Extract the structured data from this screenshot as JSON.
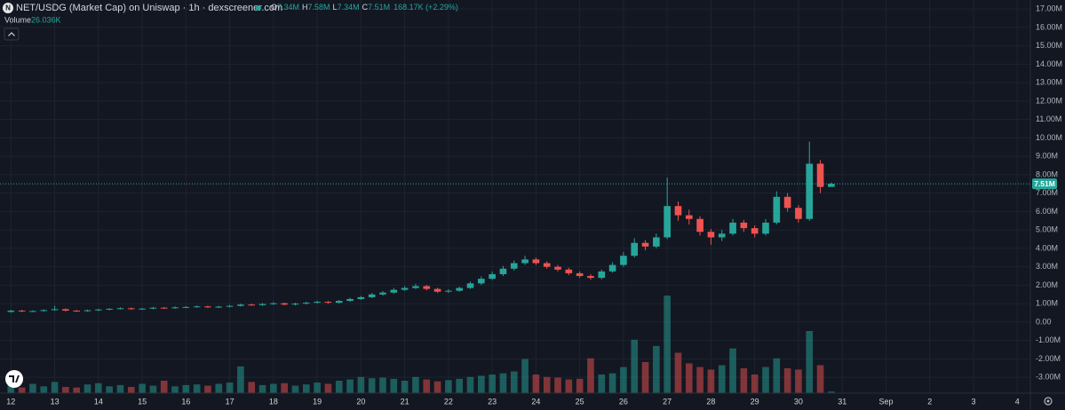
{
  "chart_data": {
    "type": "candlestick",
    "title": "NET/USDG (Market Cap) on Uniswap · 1h · dexscreener.com",
    "ohlc_legend": [
      {
        "key": "O",
        "value": "7.34M"
      },
      {
        "key": "H",
        "value": "7.58M"
      },
      {
        "key": "L",
        "value": "7.34M"
      },
      {
        "key": "C",
        "value": "7.51M"
      }
    ],
    "change": "168.17K (+2.29%)",
    "volume_label": "Volume",
    "volume_value": "26.036K",
    "up_color": "#26a69a",
    "down_color": "#ef5350",
    "grid": true,
    "xlim": [
      -0.25,
      23.3
    ],
    "xticks": [
      {
        "value": 0,
        "label": "12"
      },
      {
        "value": 1,
        "label": "13"
      },
      {
        "value": 2,
        "label": "14"
      },
      {
        "value": 3,
        "label": "15"
      },
      {
        "value": 4,
        "label": "16"
      },
      {
        "value": 5,
        "label": "17"
      },
      {
        "value": 6,
        "label": "18"
      },
      {
        "value": 7,
        "label": "19"
      },
      {
        "value": 8,
        "label": "20"
      },
      {
        "value": 9,
        "label": "21"
      },
      {
        "value": 10,
        "label": "22"
      },
      {
        "value": 11,
        "label": "23"
      },
      {
        "value": 12,
        "label": "24"
      },
      {
        "value": 13,
        "label": "25"
      },
      {
        "value": 14,
        "label": "26"
      },
      {
        "value": 15,
        "label": "27"
      },
      {
        "value": 16,
        "label": "28"
      },
      {
        "value": 17,
        "label": "29"
      },
      {
        "value": 18,
        "label": "30"
      },
      {
        "value": 19,
        "label": "31"
      },
      {
        "value": 20,
        "label": "Sep"
      },
      {
        "value": 21,
        "label": "2"
      },
      {
        "value": 22,
        "label": "3"
      },
      {
        "value": 23,
        "label": "4"
      }
    ],
    "ylim": [
      -3.86,
      17.49
    ],
    "yticks": [
      {
        "value": 17,
        "label": "17.00M"
      },
      {
        "value": 16,
        "label": "16.00M"
      },
      {
        "value": 15,
        "label": "15.00M"
      },
      {
        "value": 14,
        "label": "14.00M"
      },
      {
        "value": 13,
        "label": "13.00M"
      },
      {
        "value": 12,
        "label": "12.00M"
      },
      {
        "value": 11,
        "label": "11.00M"
      },
      {
        "value": 10,
        "label": "10.00M"
      },
      {
        "value": 9,
        "label": "9.00M"
      },
      {
        "value": 8,
        "label": "8.00M"
      },
      {
        "value": 7,
        "label": "7.00M"
      },
      {
        "value": 6,
        "label": "6.00M"
      },
      {
        "value": 5,
        "label": "5.00M"
      },
      {
        "value": 4,
        "label": "4.00M"
      },
      {
        "value": 3,
        "label": "3.00M"
      },
      {
        "value": 2,
        "label": "2.00M"
      },
      {
        "value": 1,
        "label": "1.00M"
      },
      {
        "value": 0,
        "label": "0.00"
      },
      {
        "value": -1,
        "label": "-1.00M"
      },
      {
        "value": -2,
        "label": "-2.00M"
      },
      {
        "value": -3,
        "label": "-3.00M"
      }
    ],
    "last_price": {
      "value": 7.51,
      "label": "7.51M"
    },
    "volume_ylim": [
      0,
      2000
    ],
    "x": [
      0,
      0.25,
      0.5,
      0.75,
      1,
      1.25,
      1.5,
      1.75,
      2,
      2.25,
      2.5,
      2.75,
      3,
      3.25,
      3.5,
      3.75,
      4,
      4.25,
      4.5,
      4.75,
      5,
      5.25,
      5.5,
      5.75,
      6,
      6.25,
      6.5,
      6.75,
      7,
      7.25,
      7.5,
      7.75,
      8,
      8.25,
      8.5,
      8.75,
      9,
      9.25,
      9.5,
      9.75,
      10,
      10.25,
      10.5,
      10.75,
      11,
      11.25,
      11.5,
      11.75,
      12,
      12.25,
      12.5,
      12.75,
      13,
      13.25,
      13.5,
      13.75,
      14,
      14.25,
      14.5,
      14.75,
      15,
      15.25,
      15.5,
      15.75,
      16,
      16.25,
      16.5,
      16.75,
      17,
      17.25,
      17.5,
      17.75,
      18,
      18.25,
      18.5,
      18.75
    ],
    "open": [
      0.55,
      0.62,
      0.58,
      0.6,
      0.65,
      0.7,
      0.62,
      0.6,
      0.64,
      0.68,
      0.72,
      0.75,
      0.7,
      0.73,
      0.78,
      0.76,
      0.8,
      0.82,
      0.85,
      0.8,
      0.84,
      0.88,
      0.95,
      0.92,
      0.98,
      1.02,
      0.95,
      1.0,
      1.05,
      1.1,
      1.05,
      1.15,
      1.25,
      1.35,
      1.5,
      1.6,
      1.75,
      1.85,
      1.95,
      1.8,
      1.65,
      1.7,
      1.85,
      2.1,
      2.35,
      2.6,
      2.9,
      3.2,
      3.4,
      3.2,
      3.0,
      2.85,
      2.65,
      2.5,
      2.4,
      2.75,
      3.1,
      3.6,
      4.3,
      4.1,
      4.6,
      6.3,
      5.8,
      5.6,
      4.9,
      4.6,
      4.8,
      5.4,
      5.1,
      4.8,
      5.4,
      6.8,
      6.2,
      5.6,
      8.6,
      7.34
    ],
    "high": [
      0.66,
      0.66,
      0.64,
      0.69,
      0.88,
      0.74,
      0.66,
      0.68,
      0.72,
      0.76,
      0.8,
      0.79,
      0.77,
      0.82,
      0.82,
      0.85,
      0.87,
      0.9,
      0.89,
      0.88,
      0.93,
      1.0,
      1.0,
      1.03,
      1.08,
      1.06,
      1.05,
      1.1,
      1.16,
      1.14,
      1.2,
      1.32,
      1.42,
      1.58,
      1.68,
      1.85,
      1.95,
      2.08,
      2.02,
      1.86,
      1.78,
      1.92,
      2.2,
      2.48,
      2.75,
      3.05,
      3.35,
      3.6,
      3.5,
      3.3,
      3.1,
      2.95,
      2.75,
      2.6,
      2.85,
      3.25,
      3.8,
      4.55,
      4.45,
      4.8,
      7.85,
      6.55,
      6.1,
      5.75,
      5.05,
      5.0,
      5.6,
      5.55,
      5.25,
      5.6,
      7.1,
      7.0,
      6.35,
      9.8,
      8.8,
      7.58
    ],
    "low": [
      0.51,
      0.54,
      0.54,
      0.56,
      0.61,
      0.58,
      0.56,
      0.56,
      0.6,
      0.64,
      0.68,
      0.66,
      0.66,
      0.69,
      0.72,
      0.72,
      0.76,
      0.78,
      0.76,
      0.76,
      0.8,
      0.84,
      0.88,
      0.88,
      0.94,
      0.9,
      0.9,
      0.96,
      1.0,
      1.0,
      1.0,
      1.1,
      1.2,
      1.3,
      1.44,
      1.54,
      1.7,
      1.8,
      1.72,
      1.58,
      1.58,
      1.64,
      1.8,
      2.02,
      2.28,
      2.5,
      2.8,
      3.1,
      3.1,
      2.9,
      2.75,
      2.55,
      2.4,
      2.3,
      2.32,
      2.68,
      3.0,
      3.5,
      3.9,
      4.0,
      4.5,
      5.5,
      5.3,
      4.7,
      4.2,
      4.4,
      4.7,
      4.9,
      4.6,
      4.7,
      5.3,
      6.0,
      5.4,
      5.5,
      7.0,
      7.34
    ],
    "close": [
      0.62,
      0.58,
      0.6,
      0.65,
      0.7,
      0.62,
      0.6,
      0.64,
      0.68,
      0.72,
      0.75,
      0.7,
      0.73,
      0.78,
      0.76,
      0.8,
      0.82,
      0.85,
      0.8,
      0.84,
      0.88,
      0.95,
      0.92,
      0.98,
      1.02,
      0.95,
      1.0,
      1.05,
      1.1,
      1.05,
      1.15,
      1.25,
      1.35,
      1.5,
      1.6,
      1.75,
      1.85,
      1.95,
      1.8,
      1.65,
      1.7,
      1.85,
      2.1,
      2.35,
      2.6,
      2.9,
      3.2,
      3.4,
      3.2,
      3.0,
      2.85,
      2.65,
      2.5,
      2.4,
      2.75,
      3.1,
      3.6,
      4.3,
      4.1,
      4.6,
      6.3,
      5.8,
      5.6,
      4.9,
      4.6,
      4.8,
      5.4,
      5.1,
      4.8,
      5.4,
      6.8,
      6.2,
      5.6,
      8.6,
      7.34,
      7.51
    ],
    "volume": [
      120,
      90,
      150,
      110,
      180,
      100,
      90,
      140,
      160,
      110,
      130,
      100,
      150,
      120,
      200,
      110,
      130,
      140,
      120,
      150,
      170,
      430,
      180,
      130,
      150,
      160,
      120,
      140,
      170,
      150,
      200,
      220,
      260,
      240,
      250,
      230,
      200,
      260,
      220,
      190,
      210,
      230,
      260,
      280,
      300,
      320,
      350,
      550,
      300,
      260,
      250,
      220,
      230,
      560,
      300,
      320,
      420,
      860,
      500,
      760,
      1570,
      650,
      480,
      420,
      380,
      450,
      720,
      400,
      300,
      420,
      560,
      400,
      380,
      1000,
      450,
      26.036
    ]
  }
}
